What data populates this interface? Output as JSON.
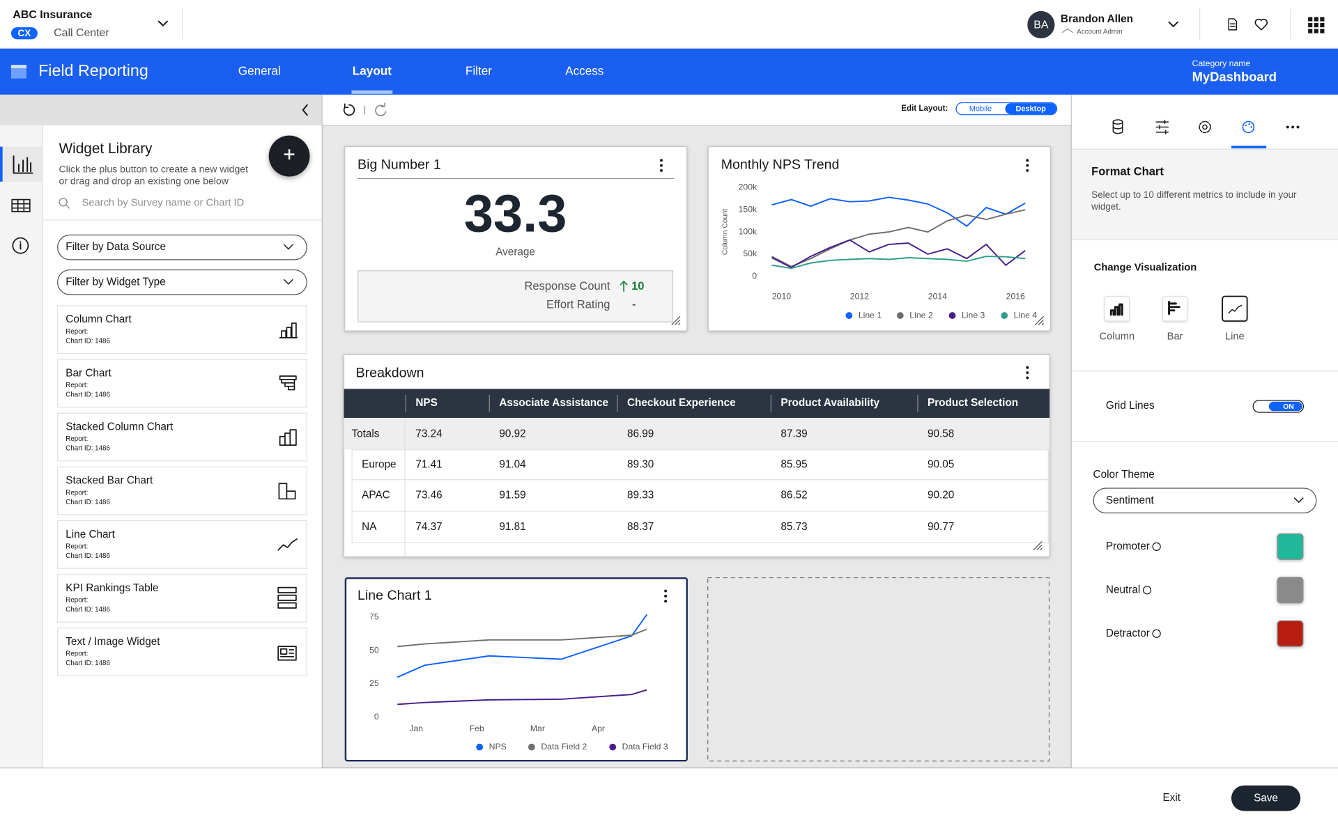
{
  "header": {
    "org": "ABC Insurance",
    "badge": "CX",
    "program": "Call Center",
    "user_initials": "BA",
    "user_name": "Brandon Allen",
    "user_role": "Account Admin"
  },
  "nav": {
    "title": "Field Reporting",
    "tabs": [
      "General",
      "Layout",
      "Filter",
      "Access"
    ],
    "active_tab": "Layout",
    "category_label": "Category name",
    "category_name": "MyDashboard"
  },
  "library": {
    "title": "Widget Library",
    "description": [
      "Click the plus button to create a new widget",
      "or drag and drop an existing one below"
    ],
    "search_placeholder": "Search by Survey name or Chart ID",
    "filters": [
      "Filter by Data Source",
      "Filter by Widget Type"
    ],
    "widgets": [
      {
        "name": "Column Chart",
        "report": "Report:",
        "chart_id": "Chart ID: 1486"
      },
      {
        "name": "Bar Chart",
        "report": "Report:",
        "chart_id": "Chart ID: 1486"
      },
      {
        "name": "Stacked Column Chart",
        "report": "Report:",
        "chart_id": "Chart ID: 1486"
      },
      {
        "name": "Stacked Bar Chart",
        "report": "Report:",
        "chart_id": "Chart ID: 1486"
      },
      {
        "name": "Line Chart",
        "report": "Report:",
        "chart_id": "Chart ID: 1486"
      },
      {
        "name": "KPI Rankings Table",
        "report": "Report:",
        "chart_id": "Chart ID: 1486"
      },
      {
        "name": "Text / Image Widget",
        "report": "Report:",
        "chart_id": "Chart ID: 1486"
      }
    ]
  },
  "toolbar": {
    "edit_layout": "Edit Layout:",
    "modes": [
      "Mobile",
      "Desktop"
    ],
    "active_mode": "Desktop"
  },
  "big_number": {
    "title": "Big Number 1",
    "value": "33.3",
    "label": "Average",
    "metrics": [
      {
        "name": "Response Count",
        "value": "10"
      },
      {
        "name": "Effort Rating",
        "value": "-"
      }
    ]
  },
  "chart_data": [
    {
      "type": "line",
      "title": "Monthly NPS Trend",
      "ylabel": "Column Count",
      "x": [
        2009.75,
        2010.25,
        2010.75,
        2011.25,
        2011.75,
        2012.25,
        2012.75,
        2013.25,
        2013.75,
        2014.25,
        2014.75,
        2015.25,
        2015.75,
        2016.25
      ],
      "series": [
        {
          "name": "Line 1",
          "color": "#0f62fe",
          "values": [
            161000,
            173000,
            158000,
            175000,
            168000,
            170000,
            178000,
            172000,
            163000,
            143000,
            113000,
            155000,
            140000,
            165000
          ]
        },
        {
          "name": "Line 2",
          "color": "#6f6f6f",
          "values": [
            45000,
            22000,
            40000,
            62000,
            82000,
            95000,
            100000,
            110000,
            100000,
            125000,
            138000,
            128000,
            140000,
            150000
          ]
        },
        {
          "name": "Line 3",
          "color": "#491d8b",
          "values": [
            42000,
            20000,
            45000,
            65000,
            82000,
            55000,
            72000,
            75000,
            50000,
            62000,
            40000,
            72000,
            25000,
            58000
          ]
        },
        {
          "name": "Line 4",
          "color": "#2e9e8a",
          "values": [
            25000,
            18000,
            30000,
            36000,
            38000,
            40000,
            38000,
            42000,
            40000,
            38000,
            34000,
            45000,
            44000,
            40000
          ]
        }
      ],
      "xlim": [
        2009.5,
        2016.72
      ],
      "ylim": [
        0,
        200000
      ],
      "xticks": [
        2010,
        2012,
        2014,
        2016
      ],
      "yticks": [
        0,
        {
          "value": 50000,
          "label": "50k"
        },
        {
          "value": 100000,
          "label": "100k"
        },
        {
          "value": 150000,
          "label": "150k"
        },
        {
          "value": 200000,
          "label": "200k"
        }
      ],
      "grid": false,
      "legend": "bottom"
    },
    {
      "type": "line",
      "title": "Line Chart 1",
      "x": [
        -0.31,
        0.14,
        1.2,
        2.39,
        3.55,
        3.8
      ],
      "series": [
        {
          "name": "NPS",
          "color": "#0f62fe",
          "values": [
            30,
            39,
            46,
            43.5,
            61,
            77
          ]
        },
        {
          "name": "Data Field 2",
          "color": "#6f6f6f",
          "values": [
            53,
            55,
            58,
            58,
            61.5,
            66
          ]
        },
        {
          "name": "Data Field 3",
          "color": "#491d8b",
          "values": [
            9.6,
            11,
            13,
            13.5,
            17,
            20.5
          ]
        }
      ],
      "xlim": [
        -0.46,
        4.25
      ],
      "ylim": [
        0,
        80
      ],
      "xticks": [
        {
          "value": 0,
          "label": "Jan"
        },
        {
          "value": 1,
          "label": "Feb"
        },
        {
          "value": 2,
          "label": "Mar"
        },
        {
          "value": 3,
          "label": "Apr"
        }
      ],
      "yticks": [
        0,
        25,
        50,
        75
      ],
      "grid": false,
      "legend": "bottom"
    }
  ],
  "breakdown": {
    "title": "Breakdown",
    "columns": [
      "NPS",
      "Associate Assistance",
      "Checkout Experience",
      "Product Availability",
      "Product Selection"
    ],
    "rows": [
      {
        "label": "Totals",
        "values": [
          "73.24",
          "90.92",
          "86.99",
          "87.39",
          "90.58"
        ]
      },
      {
        "label": "Europe",
        "values": [
          "71.41",
          "91.04",
          "89.30",
          "85.95",
          "90.05"
        ]
      },
      {
        "label": "APAC",
        "values": [
          "73.46",
          "91.59",
          "89.33",
          "86.52",
          "90.20"
        ]
      },
      {
        "label": "NA",
        "values": [
          "74.37",
          "91.81",
          "88.37",
          "85.73",
          "90.77"
        ]
      }
    ]
  },
  "format_panel": {
    "title": "Format Chart",
    "description": [
      "Select up to 10 different metrics to include in your",
      "widget."
    ],
    "visualization_label": "Change Visualization",
    "visualizations": [
      "Column",
      "Bar",
      "Line"
    ],
    "active_visualization": "Line",
    "grid_lines_label": "Grid Lines",
    "grid_lines_state": "ON",
    "color_theme_label": "Color Theme",
    "color_theme": "Sentiment",
    "colors": [
      {
        "name": "Promoter",
        "color": "#1fb89a"
      },
      {
        "name": "Neutral",
        "color": "#8a8a8a"
      },
      {
        "name": "Detractor",
        "color": "#b81d13"
      }
    ]
  },
  "footer": {
    "exit": "Exit",
    "save": "Save"
  }
}
